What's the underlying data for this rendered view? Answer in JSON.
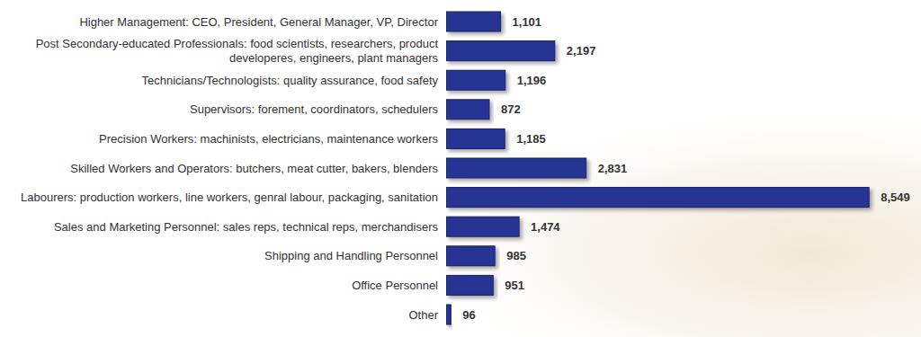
{
  "chart_data": {
    "type": "bar",
    "orientation": "horizontal",
    "categories": [
      "Higher Management: CEO, President, General Manager, VP, Director",
      "Post Secondary-educated Professionals: food scientists, researchers, product developeres, engineers, plant managers",
      "Technicians/Technologists: quality assurance, food safety",
      "Supervisors: forement, coordinators, schedulers",
      "Precision Workers: machinists, electricians, maintenance workers",
      "Skilled Workers and Operators: butchers, meat cutter, bakers, blenders",
      "Labourers: production workers, line workers, genral labour, packaging, sanitation",
      "Sales and Marketing Personnel: sales reps, technical reps, merchandisers",
      "Shipping and Handling Personnel",
      "Office Personnel",
      "Other"
    ],
    "values": [
      1101,
      2197,
      1196,
      872,
      1185,
      2831,
      8549,
      1474,
      985,
      951,
      96
    ],
    "value_labels": [
      "1,101",
      "2,197",
      "1,196",
      "872",
      "1,185",
      "2,831",
      "8,549",
      "1,474",
      "985",
      "951",
      "96"
    ],
    "color": "#283593",
    "xlim": [
      0,
      9000
    ],
    "grid": false,
    "data_labels": true,
    "tick_labels": "y"
  }
}
